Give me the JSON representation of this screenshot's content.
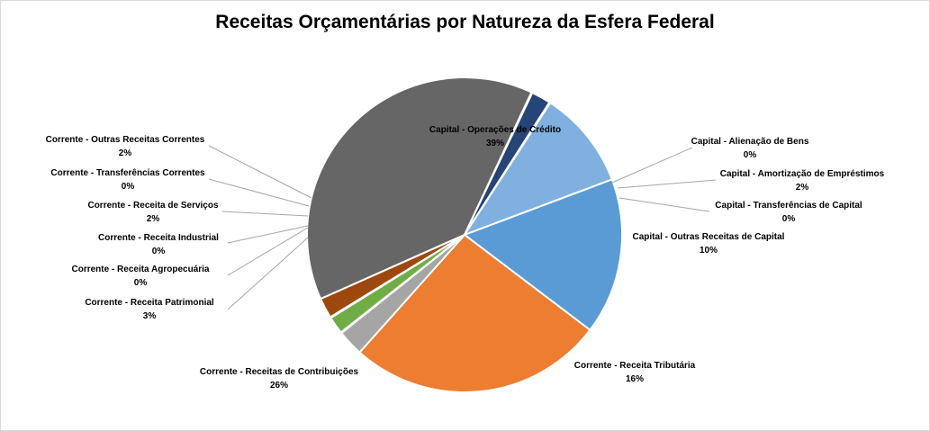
{
  "chart_data": {
    "type": "pie",
    "title": "Receitas Orçamentárias por Natureza da Esfera Federal",
    "slices": [
      {
        "label": "Capital - Operações de Crédito",
        "percent_label": "39%",
        "value": 39.0,
        "color": "#666666"
      },
      {
        "label": "Capital - Alienação de Bens",
        "percent_label": "0%",
        "value": 0.1,
        "color": "#1f3864"
      },
      {
        "label": "Capital - Amortização de Empréstimos",
        "percent_label": "2%",
        "value": 2.0,
        "color": "#264478"
      },
      {
        "label": "Capital - Transferências de Capital",
        "percent_label": "0%",
        "value": 0.1,
        "color": "#9dc3e6"
      },
      {
        "label": "Capital - Outras Receitas de Capital",
        "percent_label": "10%",
        "value": 10.2,
        "color": "#7fb0df"
      },
      {
        "label": "Corrente - Receita Tributária",
        "percent_label": "16%",
        "value": 16.2,
        "color": "#5b9bd5"
      },
      {
        "label": "Corrente - Receitas de Contribuições",
        "percent_label": "26%",
        "value": 26.5,
        "color": "#ed7d31"
      },
      {
        "label": "Corrente - Receita Patrimonial",
        "percent_label": "3%",
        "value": 2.7,
        "color": "#a5a5a5"
      },
      {
        "label": "Corrente - Receita Agropecuária",
        "percent_label": "0%",
        "value": 0.05,
        "color": "#ffc000"
      },
      {
        "label": "Corrente - Receita Industrial",
        "percent_label": "0%",
        "value": 0.05,
        "color": "#4472c4"
      },
      {
        "label": "Corrente - Receita de Serviços",
        "percent_label": "2%",
        "value": 1.8,
        "color": "#70ad47"
      },
      {
        "label": "Corrente - Transferências Correntes",
        "percent_label": "0%",
        "value": 0.1,
        "color": "#264478"
      },
      {
        "label": "Corrente - Outras Receitas Correntes",
        "percent_label": "2%",
        "value": 2.1,
        "color": "#9e480e"
      }
    ],
    "legend": "none"
  }
}
